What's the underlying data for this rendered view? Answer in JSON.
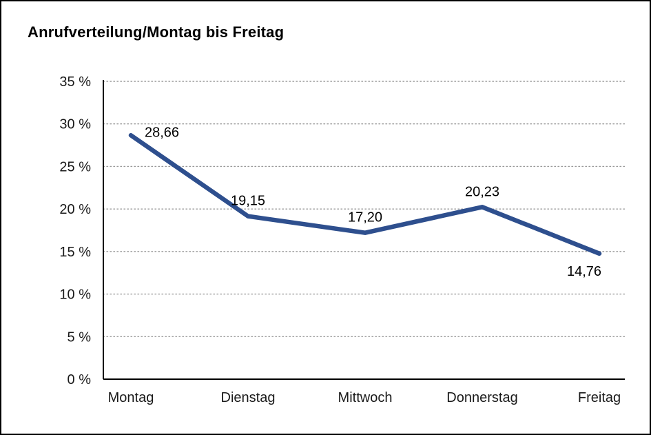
{
  "title": "Anrufverteilung/Montag bis Freitag",
  "chart_data": {
    "type": "line",
    "title": "Anrufverteilung/Montag bis Freitag",
    "categories": [
      "Montag",
      "Dienstag",
      "Mittwoch",
      "Donnerstag",
      "Freitag"
    ],
    "values": [
      28.66,
      19.15,
      17.2,
      20.23,
      14.76
    ],
    "value_labels": [
      "28,66",
      "19,15",
      "17,20",
      "20,23",
      "14,76"
    ],
    "label_placements": [
      "right",
      "above",
      "above",
      "above",
      "below-left"
    ],
    "xlabel": "",
    "ylabel": "",
    "ylim": [
      0,
      35
    ],
    "ytick_step": 5,
    "ytick_suffix": " %",
    "ytick_labels": [
      "0 %",
      "5 %",
      "10 %",
      "15 %",
      "20 %",
      "25 %",
      "30 %",
      "35 %"
    ],
    "grid": "horizontal-dotted",
    "legend": "none",
    "line_color": "#2e4f8e",
    "axis_color": "#000000",
    "grid_color": "#999999",
    "text_color": "#1a1a1a"
  }
}
